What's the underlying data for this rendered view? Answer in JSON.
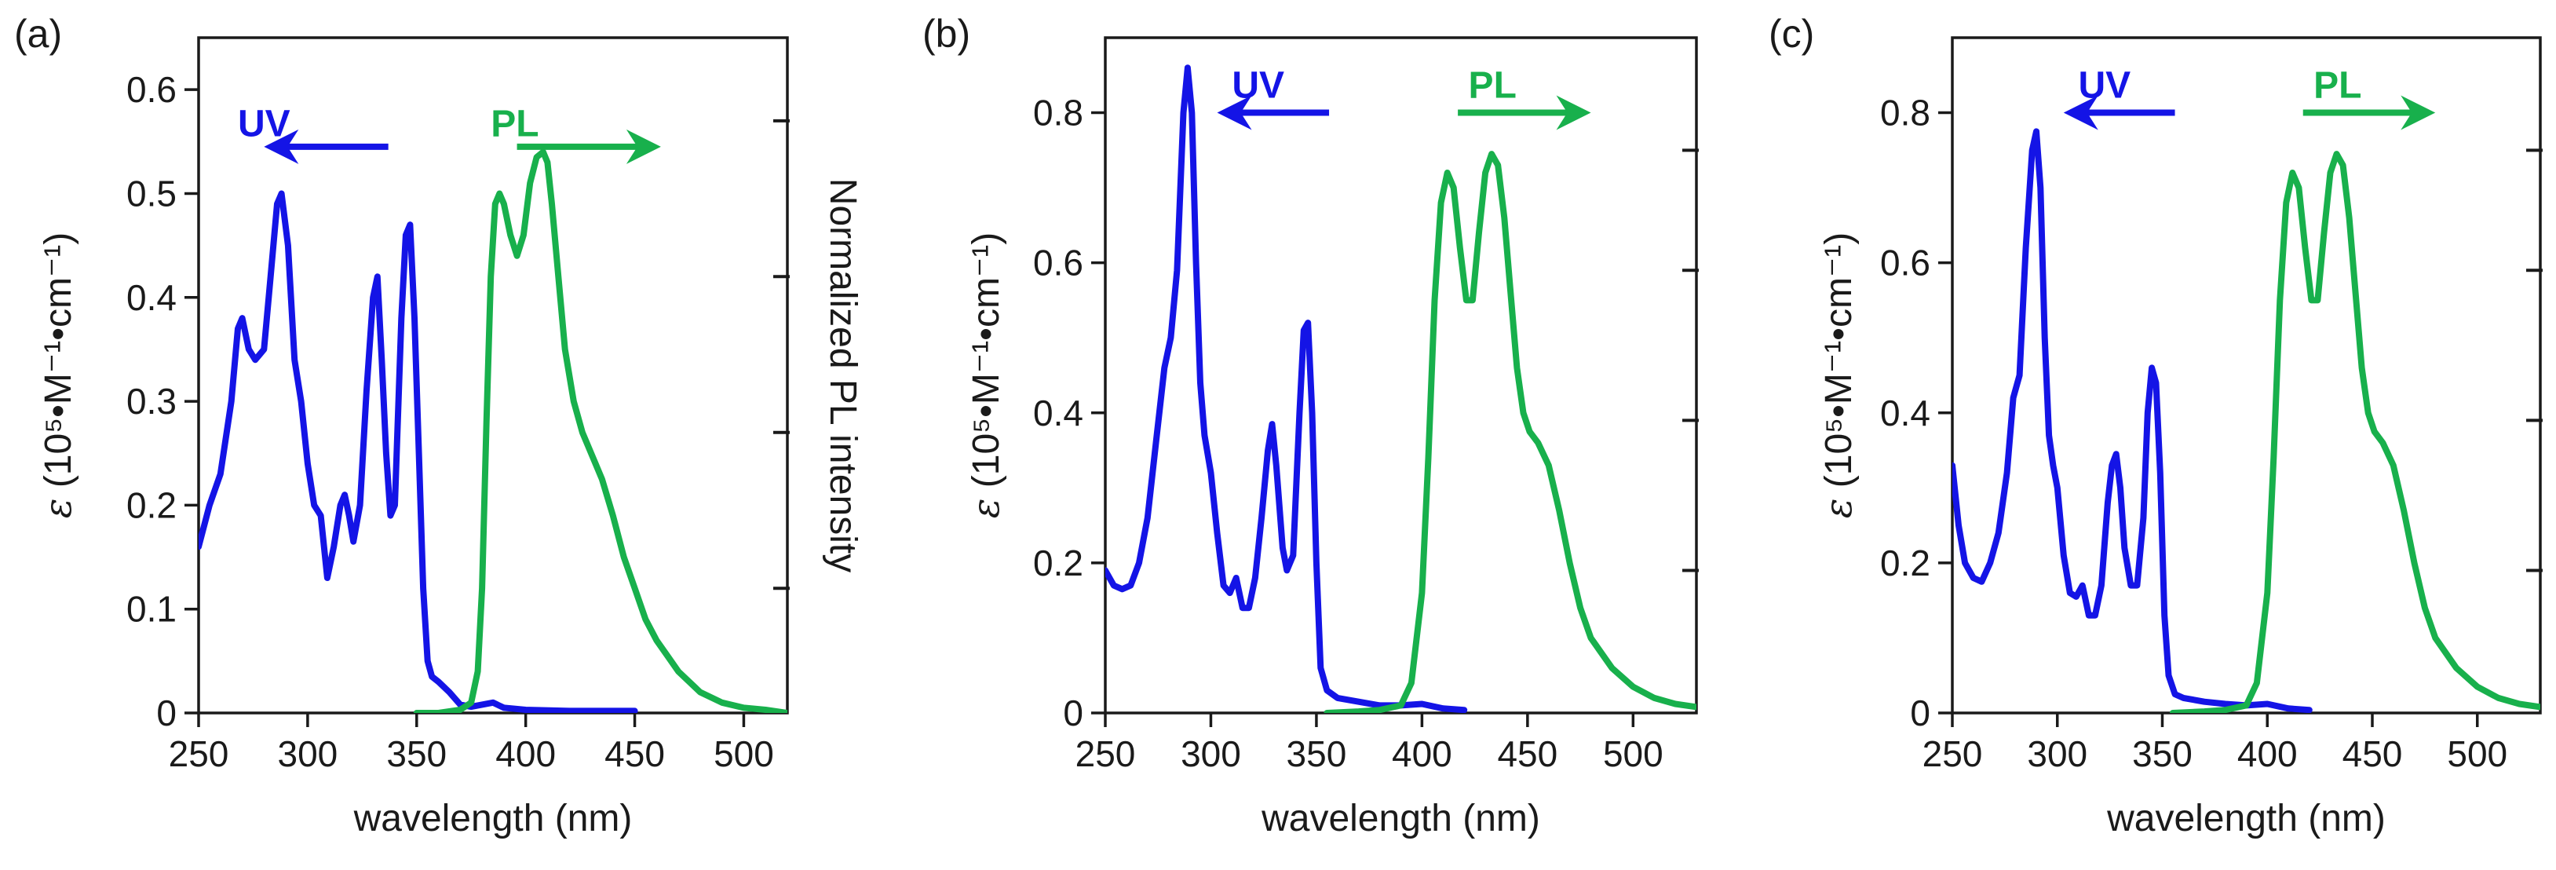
{
  "colors": {
    "uv": "#1414e6",
    "pl": "#18b04c",
    "axis": "#1a1a1a"
  },
  "chart_data": [
    {
      "panel_label": "(a)",
      "type": "line",
      "xlabel": "wavelength (nm)",
      "ylabel_symbol": "ε",
      "ylabel_rest": " (10⁵•M⁻¹•cm⁻¹)",
      "y2label": "Normalized PL intensity",
      "xlim": [
        250,
        520
      ],
      "ylim": [
        0,
        0.65
      ],
      "xticks": [
        250,
        300,
        350,
        400,
        450,
        500
      ],
      "xtick_labels": [
        "250",
        "300",
        "350",
        "400",
        "450",
        "500"
      ],
      "yticks": [
        0,
        0.1,
        0.2,
        0.3,
        0.4,
        0.5,
        0.6
      ],
      "ytick_labels": [
        "0",
        "0.1",
        "0.2",
        "0.3",
        "0.4",
        "0.5",
        "0.6"
      ],
      "y2ticks": [
        0.12,
        0.27,
        0.42,
        0.57
      ],
      "uv_label": "UV",
      "pl_label": "PL",
      "series": [
        {
          "name": "UV",
          "x": [
            250,
            255,
            260,
            265,
            268,
            270,
            273,
            276,
            278,
            280,
            283,
            286,
            288,
            291,
            294,
            297,
            300,
            303,
            306,
            309,
            312,
            315,
            317,
            319,
            321,
            324,
            327,
            330,
            332,
            334,
            336,
            338,
            340,
            343,
            345,
            347,
            349,
            351,
            353,
            355,
            357,
            360,
            365,
            370,
            375,
            380,
            385,
            390,
            400,
            420,
            450
          ],
          "y": [
            0.16,
            0.2,
            0.23,
            0.3,
            0.37,
            0.38,
            0.35,
            0.34,
            0.345,
            0.35,
            0.42,
            0.49,
            0.5,
            0.45,
            0.34,
            0.3,
            0.24,
            0.2,
            0.19,
            0.13,
            0.16,
            0.2,
            0.21,
            0.19,
            0.165,
            0.2,
            0.31,
            0.4,
            0.42,
            0.34,
            0.25,
            0.19,
            0.2,
            0.38,
            0.46,
            0.47,
            0.38,
            0.25,
            0.12,
            0.05,
            0.035,
            0.03,
            0.02,
            0.008,
            0.006,
            0.008,
            0.01,
            0.005,
            0.003,
            0.002,
            0.002
          ]
        },
        {
          "name": "PL",
          "x": [
            350,
            360,
            370,
            375,
            378,
            380,
            382,
            384,
            386,
            388,
            390,
            393,
            396,
            399,
            402,
            405,
            408,
            410,
            412,
            415,
            418,
            422,
            426,
            430,
            435,
            440,
            445,
            450,
            455,
            460,
            465,
            470,
            480,
            490,
            500,
            510,
            520
          ],
          "y": [
            0.0,
            0.0,
            0.003,
            0.01,
            0.04,
            0.12,
            0.28,
            0.42,
            0.49,
            0.5,
            0.49,
            0.46,
            0.44,
            0.46,
            0.51,
            0.535,
            0.54,
            0.53,
            0.49,
            0.42,
            0.35,
            0.3,
            0.27,
            0.25,
            0.225,
            0.19,
            0.15,
            0.12,
            0.09,
            0.07,
            0.055,
            0.04,
            0.02,
            0.01,
            0.005,
            0.003,
            0.0
          ]
        }
      ]
    },
    {
      "panel_label": "(b)",
      "type": "line",
      "xlabel": "wavelength (nm)",
      "ylabel_symbol": "ε",
      "ylabel_rest": " (10⁵•M⁻¹•cm⁻¹)",
      "xlim": [
        250,
        530
      ],
      "ylim": [
        0,
        0.9
      ],
      "xticks": [
        250,
        300,
        350,
        400,
        450,
        500
      ],
      "xtick_labels": [
        "250",
        "300",
        "350",
        "400",
        "450",
        "500"
      ],
      "yticks": [
        0,
        0.2,
        0.4,
        0.6,
        0.8
      ],
      "ytick_labels": [
        "0",
        "0.2",
        "0.4",
        "0.6",
        "0.8"
      ],
      "y2ticks": [
        0.19,
        0.39,
        0.59,
        0.75
      ],
      "uv_label": "UV",
      "pl_label": "PL",
      "series": [
        {
          "name": "UV",
          "x": [
            250,
            254,
            258,
            262,
            266,
            270,
            274,
            278,
            281,
            284,
            287,
            289,
            291,
            293,
            295,
            297,
            300,
            303,
            306,
            309,
            312,
            315,
            318,
            321,
            324,
            327,
            329,
            331,
            334,
            336,
            339,
            342,
            344,
            346,
            348,
            350,
            352,
            355,
            360,
            370,
            380,
            390,
            400,
            410,
            420
          ],
          "y": [
            0.19,
            0.17,
            0.165,
            0.17,
            0.2,
            0.26,
            0.36,
            0.46,
            0.5,
            0.59,
            0.8,
            0.86,
            0.8,
            0.6,
            0.44,
            0.37,
            0.32,
            0.24,
            0.17,
            0.16,
            0.18,
            0.14,
            0.14,
            0.18,
            0.26,
            0.35,
            0.385,
            0.33,
            0.22,
            0.19,
            0.21,
            0.4,
            0.51,
            0.52,
            0.4,
            0.2,
            0.06,
            0.03,
            0.02,
            0.015,
            0.01,
            0.01,
            0.012,
            0.006,
            0.004
          ]
        },
        {
          "name": "PL",
          "x": [
            355,
            370,
            380,
            390,
            395,
            400,
            403,
            406,
            409,
            412,
            415,
            418,
            421,
            424,
            427,
            430,
            433,
            436,
            439,
            442,
            445,
            448,
            451,
            455,
            460,
            465,
            470,
            475,
            480,
            490,
            500,
            510,
            520,
            530
          ],
          "y": [
            0.0,
            0.002,
            0.004,
            0.01,
            0.04,
            0.16,
            0.34,
            0.55,
            0.68,
            0.72,
            0.7,
            0.62,
            0.55,
            0.55,
            0.64,
            0.72,
            0.745,
            0.73,
            0.66,
            0.56,
            0.46,
            0.4,
            0.375,
            0.36,
            0.33,
            0.27,
            0.2,
            0.14,
            0.1,
            0.06,
            0.035,
            0.02,
            0.012,
            0.008
          ]
        }
      ]
    },
    {
      "panel_label": "(c)",
      "type": "line",
      "xlabel": "wavelength (nm)",
      "ylabel_symbol": "ε",
      "ylabel_rest": " (10⁵•M⁻¹•cm⁻¹)",
      "xlim": [
        250,
        530
      ],
      "ylim": [
        0,
        0.9
      ],
      "xticks": [
        250,
        300,
        350,
        400,
        450,
        500
      ],
      "xtick_labels": [
        "250",
        "300",
        "350",
        "400",
        "450",
        "500"
      ],
      "yticks": [
        0,
        0.2,
        0.4,
        0.6,
        0.8
      ],
      "ytick_labels": [
        "0",
        "0.2",
        "0.4",
        "0.6",
        "0.8"
      ],
      "y2ticks": [
        0.19,
        0.39,
        0.59,
        0.75
      ],
      "uv_label": "UV",
      "pl_label": "PL",
      "series": [
        {
          "name": "UV",
          "x": [
            250,
            253,
            256,
            260,
            264,
            268,
            272,
            276,
            279,
            282,
            285,
            288,
            290,
            292,
            294,
            296,
            298,
            300,
            303,
            306,
            309,
            312,
            315,
            318,
            321,
            324,
            326,
            328,
            330,
            332,
            335,
            338,
            341,
            343,
            345,
            347,
            349,
            351,
            353,
            356,
            360,
            370,
            380,
            390,
            400,
            410,
            420
          ],
          "y": [
            0.33,
            0.25,
            0.2,
            0.18,
            0.175,
            0.2,
            0.24,
            0.32,
            0.42,
            0.45,
            0.62,
            0.75,
            0.775,
            0.7,
            0.5,
            0.37,
            0.33,
            0.3,
            0.21,
            0.16,
            0.155,
            0.17,
            0.13,
            0.13,
            0.17,
            0.28,
            0.33,
            0.345,
            0.3,
            0.22,
            0.17,
            0.17,
            0.26,
            0.4,
            0.46,
            0.44,
            0.32,
            0.13,
            0.05,
            0.025,
            0.02,
            0.015,
            0.012,
            0.01,
            0.012,
            0.006,
            0.004
          ]
        },
        {
          "name": "PL",
          "x": [
            355,
            370,
            380,
            390,
            395,
            400,
            403,
            406,
            409,
            412,
            415,
            418,
            421,
            424,
            427,
            430,
            433,
            436,
            439,
            442,
            445,
            448,
            451,
            455,
            460,
            465,
            470,
            475,
            480,
            490,
            500,
            510,
            520,
            530
          ],
          "y": [
            0.0,
            0.002,
            0.004,
            0.01,
            0.04,
            0.16,
            0.34,
            0.55,
            0.68,
            0.72,
            0.7,
            0.62,
            0.55,
            0.55,
            0.64,
            0.72,
            0.745,
            0.73,
            0.66,
            0.56,
            0.46,
            0.4,
            0.375,
            0.36,
            0.33,
            0.27,
            0.2,
            0.14,
            0.1,
            0.06,
            0.035,
            0.02,
            0.012,
            0.008
          ]
        }
      ]
    }
  ]
}
